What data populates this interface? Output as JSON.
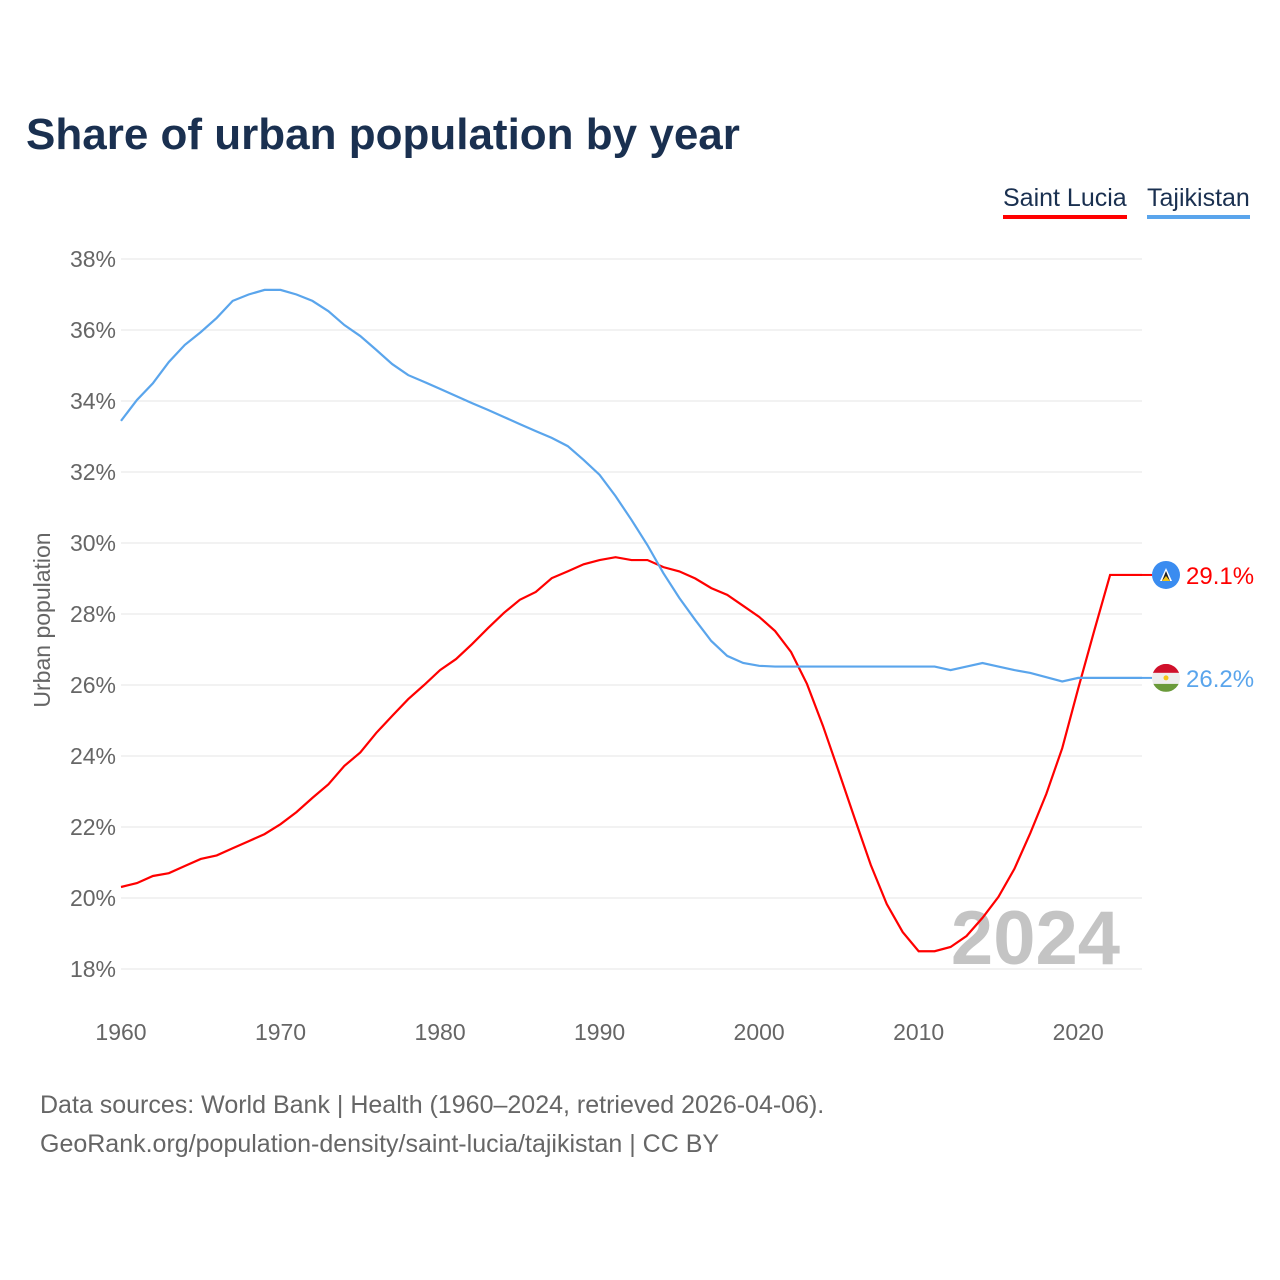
{
  "title": "Share of urban population by year",
  "legend": [
    {
      "label": "Saint Lucia",
      "color": "#ff0000"
    },
    {
      "label": "Tajikistan",
      "color": "#5aa5ec"
    }
  ],
  "footer": {
    "line1": "Data sources: World Bank | Health (1960–2024, retrieved 2026-04-06).",
    "line2": "GeoRank.org/population-density/saint-lucia/tajikistan | CC BY"
  },
  "chart_data": {
    "type": "line",
    "title": "Share of urban population by year",
    "xlabel": "",
    "ylabel": "Urban population",
    "year_watermark": "2024",
    "xlim": [
      1960,
      2024
    ],
    "ylim": [
      18,
      38
    ],
    "x_ticks": [
      "1960",
      "1970",
      "1980",
      "1990",
      "2000",
      "2010",
      "2020"
    ],
    "y_ticks": [
      "18%",
      "20%",
      "22%",
      "24%",
      "26%",
      "28%",
      "30%",
      "32%",
      "34%",
      "36%",
      "38%"
    ],
    "grid": true,
    "legend_position": "top-right",
    "x": [
      1960,
      1961,
      1962,
      1963,
      1964,
      1965,
      1966,
      1967,
      1968,
      1969,
      1970,
      1971,
      1972,
      1973,
      1974,
      1975,
      1976,
      1977,
      1978,
      1979,
      1980,
      1981,
      1982,
      1983,
      1984,
      1985,
      1986,
      1987,
      1988,
      1989,
      1990,
      1991,
      1992,
      1993,
      1994,
      1995,
      1996,
      1997,
      1998,
      1999,
      2000,
      2001,
      2002,
      2003,
      2004,
      2005,
      2006,
      2007,
      2008,
      2009,
      2010,
      2011,
      2012,
      2013,
      2014,
      2015,
      2016,
      2017,
      2018,
      2019,
      2020,
      2021,
      2022,
      2023,
      2024
    ],
    "series": [
      {
        "name": "Saint Lucia",
        "color": "#ff0000",
        "end_label": "29.1%",
        "flag": "saint-lucia-flag-icon",
        "values": [
          20.31,
          20.42,
          20.62,
          20.7,
          20.9,
          21.1,
          21.2,
          21.4,
          21.6,
          21.8,
          22.08,
          22.42,
          22.82,
          23.2,
          23.72,
          24.1,
          24.65,
          25.13,
          25.6,
          26.0,
          26.42,
          26.73,
          27.15,
          27.6,
          28.03,
          28.4,
          28.62,
          29.01,
          29.2,
          29.4,
          29.52,
          29.6,
          29.52,
          29.52,
          29.32,
          29.2,
          29.0,
          28.73,
          28.54,
          28.23,
          27.92,
          27.52,
          26.93,
          26.03,
          24.85,
          23.55,
          22.23,
          20.93,
          19.83,
          19.04,
          18.5,
          18.5,
          18.62,
          18.93,
          19.44,
          20.03,
          20.82,
          21.83,
          22.93,
          24.22,
          25.9,
          27.52,
          29.1,
          29.1,
          29.1
        ]
      },
      {
        "name": "Tajikistan",
        "color": "#5aa5ec",
        "end_label": "26.2%",
        "flag": "tajikistan-flag-icon",
        "values": [
          33.44,
          34.03,
          34.5,
          35.1,
          35.58,
          35.94,
          36.34,
          36.82,
          37.0,
          37.13,
          37.13,
          37.0,
          36.82,
          36.53,
          36.14,
          35.83,
          35.44,
          35.04,
          34.73,
          34.54,
          34.34,
          34.14,
          33.94,
          33.75,
          33.55,
          33.35,
          33.15,
          32.96,
          32.73,
          32.34,
          31.92,
          31.32,
          30.65,
          29.94,
          29.15,
          28.45,
          27.83,
          27.24,
          26.82,
          26.62,
          26.54,
          26.52,
          26.52,
          26.52,
          26.52,
          26.52,
          26.52,
          26.52,
          26.52,
          26.52,
          26.52,
          26.52,
          26.42,
          26.52,
          26.62,
          26.52,
          26.42,
          26.34,
          26.22,
          26.1,
          26.2,
          26.2,
          26.2,
          26.2,
          26.2
        ]
      }
    ]
  }
}
